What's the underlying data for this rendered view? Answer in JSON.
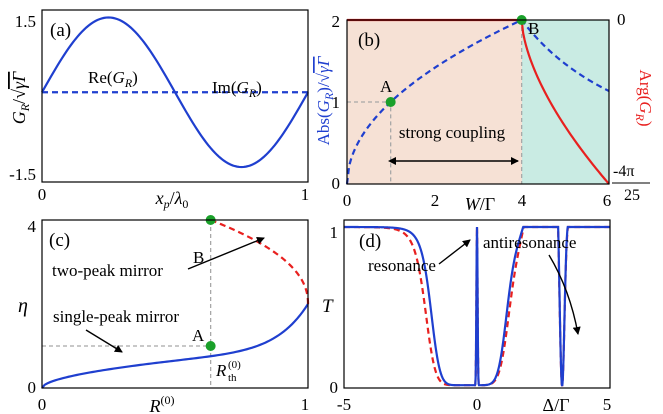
{
  "colors": {
    "blue": "#1f3fcf",
    "red": "#e8201f",
    "green": "#1aa02a",
    "peach": "#f6e1d5",
    "teal": "#c9ebe3",
    "gray": "#a8a8a8"
  },
  "chart_data": [
    {
      "panel": "(a)",
      "type": "line",
      "xlabel": "x_p/λ0",
      "ylabel": "G_R/√(γΓ)",
      "xlim": [
        0,
        1
      ],
      "ylim": [
        -1.8,
        1.65
      ],
      "xticks": [
        "0",
        "1"
      ],
      "yticks": [
        "1.5",
        "-1.5"
      ],
      "series": [
        {
          "name": "Re(G_R)",
          "style": "solid",
          "color": "blue",
          "function": "1.5*sin(2*pi*x)"
        },
        {
          "name": "Im(G_R)",
          "style": "dashed",
          "color": "blue",
          "function": "0"
        }
      ]
    },
    {
      "panel": "(b)",
      "type": "line",
      "xlabel": "W/Γ",
      "ylabel_left": "Abs(G_R)/√(γΓ)",
      "ylabel_right": "Arg(G_R)",
      "xlim": [
        0,
        6
      ],
      "ylim_left": [
        0,
        2
      ],
      "ylim_right": [
        -0.503,
        0
      ],
      "xticks": [
        "0",
        "2",
        "4",
        "6"
      ],
      "yticks_left": [
        "0",
        "1",
        "2"
      ],
      "yticks_right": [
        "0",
        "-4π",
        "25"
      ],
      "annotations": [
        "A",
        "B",
        "strong coupling"
      ],
      "points": [
        {
          "label": "A",
          "x": 1,
          "y": 1
        },
        {
          "label": "B",
          "x": 4,
          "y": 2
        }
      ],
      "regions": [
        {
          "x": [
            0,
            4
          ],
          "color": "peach"
        },
        {
          "x": [
            4,
            6
          ],
          "color": "teal"
        }
      ],
      "series": [
        {
          "name": "Abs(G_R)",
          "axis": "left",
          "style": "dashed",
          "color": "blue",
          "function": "sqrt(W) for W<=4; 2*sqrt(4/W)^(1/2) approx for W>4",
          "x": [
            0,
            0.25,
            0.5,
            1,
            1.5,
            2,
            2.5,
            3,
            3.5,
            4,
            4.5,
            5,
            5.5,
            6
          ],
          "y": [
            0,
            0.5,
            0.707,
            1.0,
            1.225,
            1.414,
            1.581,
            1.732,
            1.871,
            2.0,
            1.8,
            1.67,
            1.57,
            1.49
          ]
        },
        {
          "name": "Arg(G_R)",
          "axis": "right",
          "style": "solid",
          "color": "red",
          "x": [
            0,
            4,
            4.05,
            4.2,
            4.5,
            5,
            5.5,
            6
          ],
          "y": [
            0,
            0,
            -0.06,
            -0.13,
            -0.22,
            -0.33,
            -0.43,
            -0.503
          ]
        }
      ]
    },
    {
      "panel": "(c)",
      "type": "line",
      "xlabel": "R^(0)",
      "ylabel": "η",
      "xlim": [
        0,
        1
      ],
      "ylim": [
        0,
        4
      ],
      "xticks": [
        "0",
        "1"
      ],
      "yticks": [
        "0",
        "4"
      ],
      "annotations": [
        "B",
        "A",
        "two-peak mirror",
        "single-peak mirror",
        "R_th^(0)"
      ],
      "points": [
        {
          "label": "A",
          "x": 0.634,
          "y": 1
        },
        {
          "label": "B",
          "x": 0.634,
          "y": 4
        }
      ],
      "series": [
        {
          "name": "single-peak mirror",
          "style": "solid",
          "color": "blue",
          "x": [
            0,
            0.05,
            0.1,
            0.2,
            0.3,
            0.4,
            0.5,
            0.6,
            0.7,
            0.8,
            0.9,
            0.95,
            1.0
          ],
          "y": [
            0,
            0.21,
            0.3,
            0.45,
            0.58,
            0.7,
            0.82,
            0.94,
            1.07,
            1.24,
            1.48,
            1.66,
            2.0
          ]
        },
        {
          "name": "two-peak mirror",
          "style": "dashed",
          "color": "red",
          "x": [
            0.634,
            0.7,
            0.8,
            0.9,
            0.95,
            1.0
          ],
          "y": [
            4.0,
            3.6,
            3.1,
            2.6,
            2.35,
            2.0
          ]
        }
      ]
    },
    {
      "panel": "(d)",
      "type": "line",
      "xlabel": "Δ/Γ",
      "ylabel": "T",
      "xlim": [
        -5,
        5
      ],
      "ylim": [
        0,
        1
      ],
      "xticks": [
        "-5",
        "0",
        "5"
      ],
      "yticks": [
        "0",
        "1"
      ],
      "annotations": [
        "resonance",
        "antiresonance"
      ],
      "series": [
        {
          "name": "solid",
          "style": "solid",
          "color": "blue",
          "x": [
            -5,
            -4,
            -3,
            -2.5,
            -2,
            -1.6,
            -1.2,
            -0.8,
            -0.4,
            -0.15,
            -0.05,
            0,
            0.05,
            0.15,
            0.4,
            0.8,
            1.2,
            1.6,
            2.0,
            2.3,
            2.6,
            2.8,
            3.0,
            3.1,
            3.2,
            3.3,
            3.4,
            3.6,
            4.0,
            4.5,
            5
          ],
          "y": [
            1,
            0.99,
            0.96,
            0.88,
            0.6,
            0.2,
            0.03,
            0.01,
            0.01,
            0.02,
            0.1,
            1.0,
            0.1,
            0.02,
            0.01,
            0.02,
            0.1,
            0.35,
            0.62,
            0.72,
            0.76,
            0.74,
            0.5,
            0.2,
            0.0,
            0.3,
            0.65,
            0.9,
            0.98,
            1,
            1
          ]
        },
        {
          "name": "dashed",
          "style": "dashed",
          "color": "red",
          "x": [
            -5,
            -4,
            -3,
            -2.5,
            -2,
            -1.6,
            -1.2,
            -0.8,
            -0.4,
            -0.15,
            -0.05,
            0,
            0.05,
            0.15,
            0.4,
            0.8,
            1.2,
            1.6,
            2.0,
            2.3,
            2.6,
            2.8,
            3.0,
            3.1,
            3.2,
            3.3,
            3.4,
            3.6,
            4.0,
            4.5,
            5
          ],
          "y": [
            1,
            0.99,
            0.97,
            0.92,
            0.75,
            0.35,
            0.08,
            0.03,
            0.03,
            0.04,
            0.12,
            1.0,
            0.12,
            0.06,
            0.05,
            0.08,
            0.2,
            0.5,
            0.72,
            0.8,
            0.82,
            0.78,
            0.55,
            0.22,
            0.0,
            0.32,
            0.68,
            0.92,
            0.99,
            1,
            1
          ]
        }
      ]
    }
  ]
}
